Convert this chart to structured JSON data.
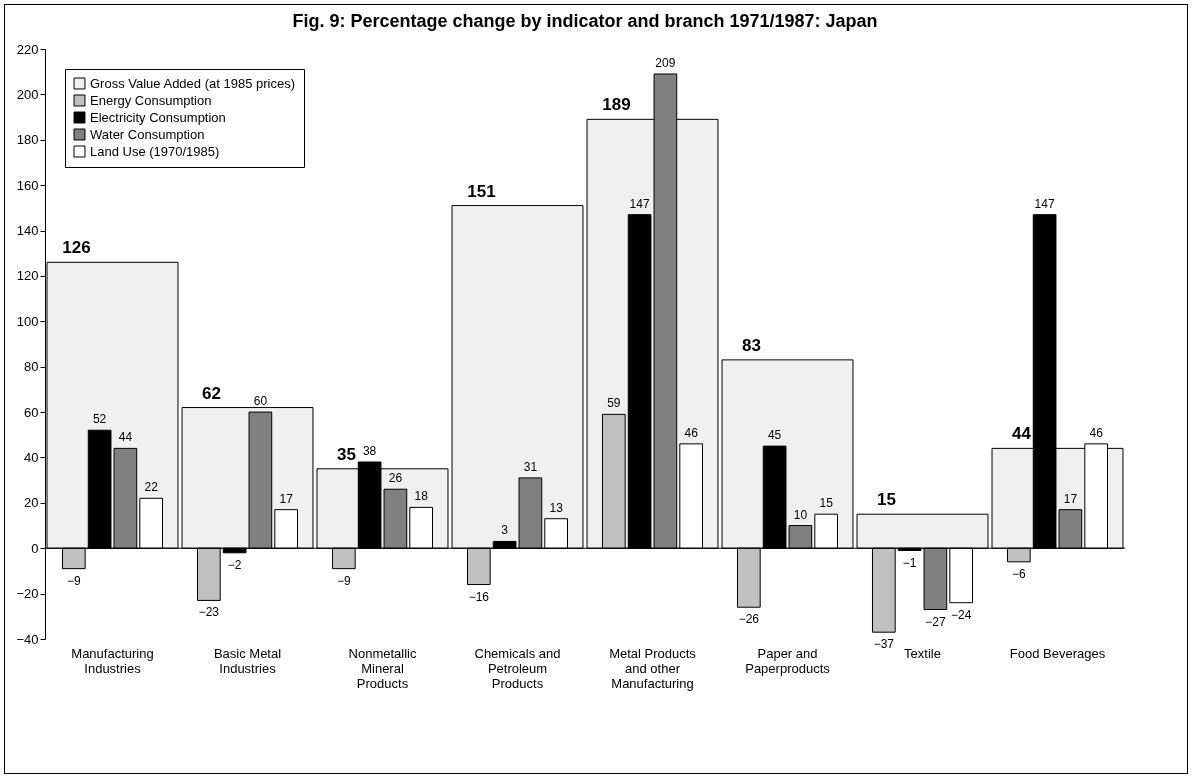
{
  "chart_data": {
    "type": "bar",
    "title": "Fig. 9: Percentage change by indicator and branch 1971/1987: Japan",
    "categories": [
      "Manufacturing Industries",
      "Basic Metal Industries",
      "Nonmetallic Mineral Products",
      "Chemicals and Petroleum Products",
      "Metal Products and other Manufacturing",
      "Paper and Paperproducts",
      "Textile",
      "Food Beverages"
    ],
    "series": [
      {
        "name": "Gross Value Added (at 1985 prices)",
        "color": "#f0f0f0",
        "values": [
          126,
          62,
          35,
          151,
          189,
          83,
          15,
          44
        ]
      },
      {
        "name": "Energy Consumption",
        "color": "#c0c0c0",
        "values": [
          -9,
          -23,
          -9,
          -16,
          59,
          -26,
          -37,
          -6
        ]
      },
      {
        "name": "Electricity Consumption",
        "color": "#000000",
        "values": [
          52,
          -2,
          38,
          3,
          147,
          45,
          -1,
          147
        ]
      },
      {
        "name": "Water Consumption",
        "color": "#808080",
        "values": [
          44,
          60,
          26,
          31,
          209,
          10,
          -27,
          17
        ]
      },
      {
        "name": "Land Use (1970/1985)",
        "color": "#ffffff",
        "values": [
          22,
          17,
          18,
          13,
          46,
          15,
          -24,
          46
        ]
      }
    ],
    "ylim": [
      -40,
      220
    ],
    "yticks": [
      -40,
      -20,
      0,
      20,
      40,
      60,
      80,
      100,
      120,
      140,
      160,
      180,
      200,
      220
    ],
    "data_labels": true,
    "legend": "top left"
  }
}
